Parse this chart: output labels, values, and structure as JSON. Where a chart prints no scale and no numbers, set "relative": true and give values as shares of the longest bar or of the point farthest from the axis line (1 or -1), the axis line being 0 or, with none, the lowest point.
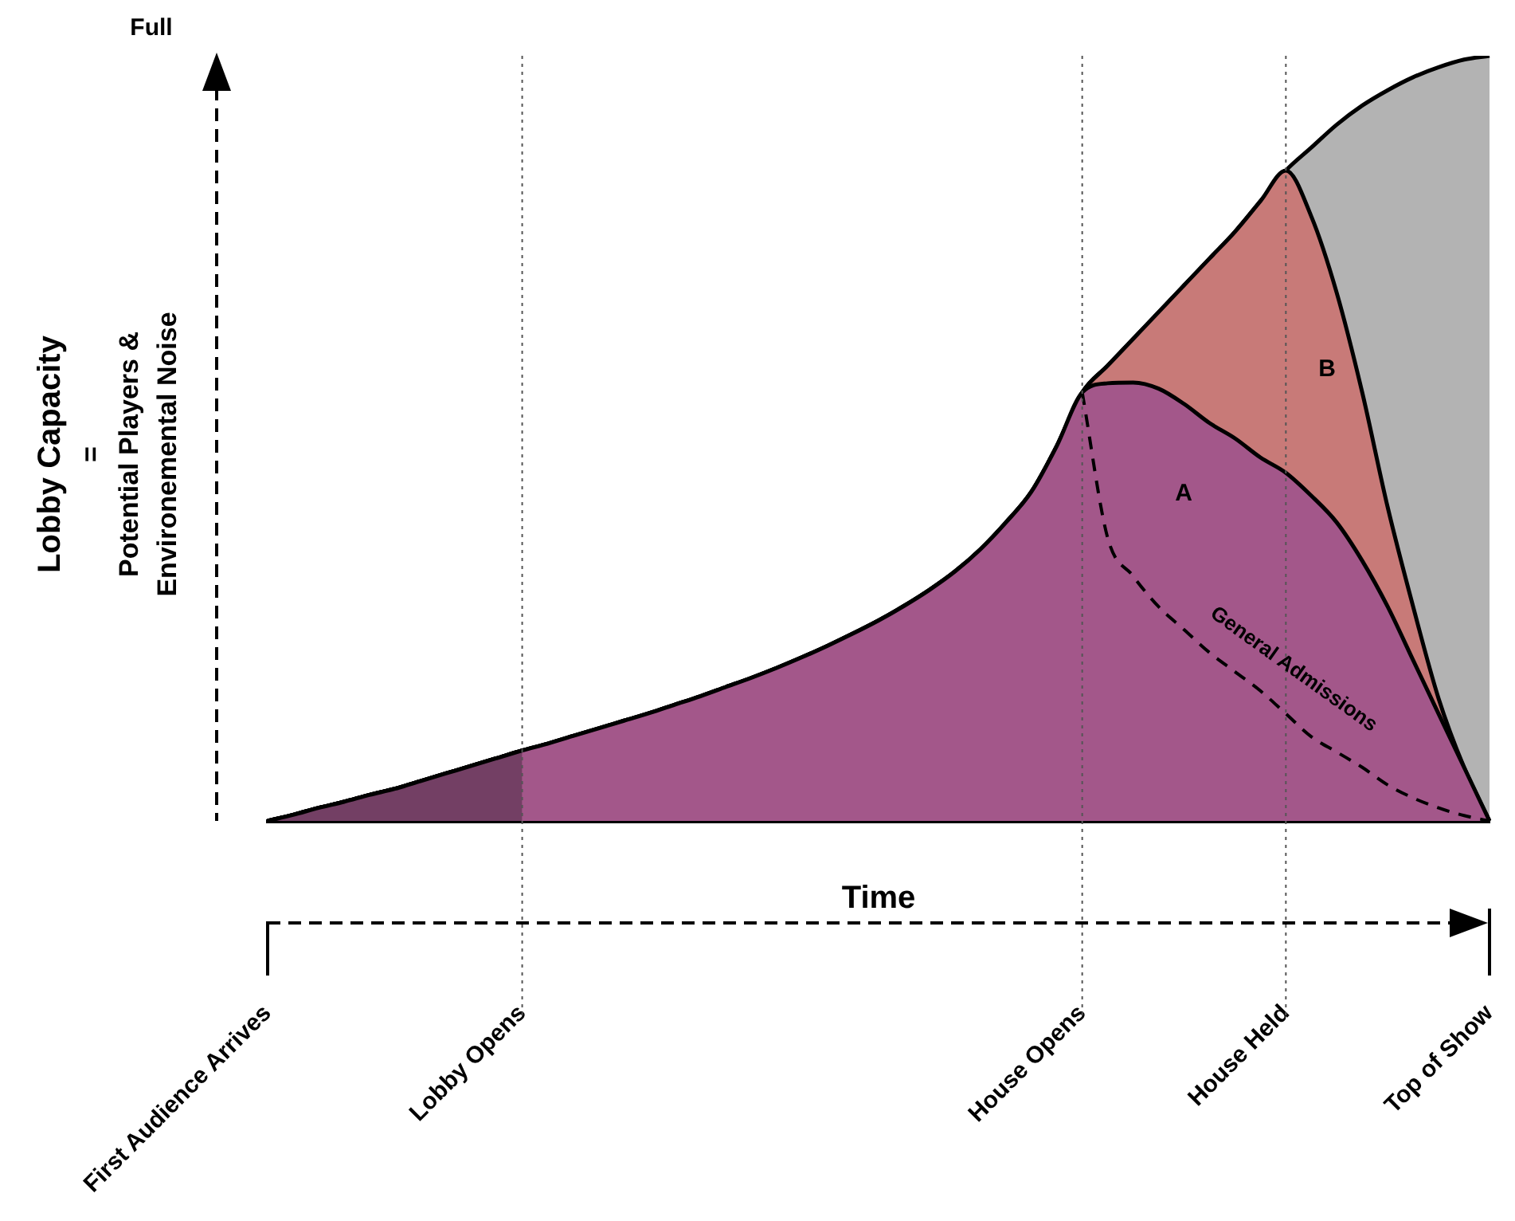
{
  "chart_data": {
    "type": "area",
    "relative": true,
    "xlabel": "Time",
    "ylabel": "Lobby Capacity\n=\nPotential Players &\nEnvironemental Noise",
    "categories": [
      "First Audience Arrives",
      null,
      null,
      null,
      null,
      null,
      null,
      null,
      null,
      null,
      "Lobby Opens",
      null,
      null,
      null,
      null,
      null,
      null,
      null,
      null,
      null,
      null,
      null,
      null,
      null,
      null,
      null,
      null,
      null,
      null,
      null,
      null,
      null,
      "House Opens",
      null,
      null,
      null,
      null,
      null,
      null,
      null,
      "House Held",
      null,
      null,
      null,
      null,
      null,
      null,
      null,
      "Top of Show"
    ],
    "series": [
      {
        "color": "#b3b3b3",
        "values": [
          0,
          0.008,
          0.017,
          0.025,
          0.034,
          0.042,
          0.052,
          0.062,
          0.072,
          0.082,
          0.092,
          0.101,
          0.111,
          0.121,
          0.131,
          0.141,
          0.152,
          0.163,
          0.175,
          0.187,
          0.2,
          0.214,
          0.229,
          0.245,
          0.262,
          0.281,
          0.302,
          0.326,
          0.355,
          0.39,
          0.43,
          0.49,
          0.56,
          0.595,
          0.63,
          0.665,
          0.7,
          0.735,
          0.77,
          0.81,
          0.85,
          0.88,
          0.91,
          0.935,
          0.955,
          0.972,
          0.985,
          0.995,
          1
        ]
      },
      {
        "color": "#c87a78",
        "values": [
          0,
          0.008,
          0.017,
          0.025,
          0.034,
          0.042,
          0.052,
          0.062,
          0.072,
          0.082,
          0.092,
          0.101,
          0.111,
          0.121,
          0.131,
          0.141,
          0.152,
          0.163,
          0.175,
          0.187,
          0.2,
          0.214,
          0.229,
          0.245,
          0.262,
          0.281,
          0.302,
          0.326,
          0.355,
          0.39,
          0.43,
          0.49,
          0.56,
          0.595,
          0.63,
          0.665,
          0.7,
          0.735,
          0.77,
          0.81,
          0.85,
          0.79,
          0.69,
          0.56,
          0.41,
          0.28,
          0.16,
          0.07,
          0
        ]
      },
      {
        "color": "#a3578a",
        "values": [
          0,
          0.008,
          0.017,
          0.025,
          0.034,
          0.042,
          0.052,
          0.062,
          0.072,
          0.082,
          0.092,
          0.101,
          0.111,
          0.121,
          0.131,
          0.141,
          0.152,
          0.163,
          0.175,
          0.187,
          0.2,
          0.214,
          0.229,
          0.245,
          0.262,
          0.281,
          0.302,
          0.326,
          0.355,
          0.39,
          0.43,
          0.49,
          0.56,
          0.572,
          0.573,
          0.565,
          0.545,
          0.52,
          0.5,
          0.475,
          0.455,
          0.425,
          0.39,
          0.34,
          0.28,
          0.21,
          0.14,
          0.07,
          0
        ]
      },
      {
        "color": "#733f64",
        "values": [
          0,
          0.008,
          0.017,
          0.025,
          0.034,
          0.042,
          0.052,
          0.062,
          0.072,
          0.082,
          0.092,
          null,
          null,
          null,
          null,
          null,
          null,
          null,
          null,
          null,
          null,
          null,
          null,
          null,
          null,
          null,
          null,
          null,
          null,
          null,
          null,
          null,
          null,
          null,
          null,
          null,
          null,
          null,
          null,
          null,
          null,
          null,
          null,
          null,
          null,
          null,
          null,
          null,
          null
        ]
      },
      {
        "type": "line",
        "color": "#000000",
        "line_style": "dashed",
        "values": [
          null,
          null,
          null,
          null,
          null,
          null,
          null,
          null,
          null,
          null,
          null,
          null,
          null,
          null,
          null,
          null,
          null,
          null,
          null,
          null,
          null,
          null,
          null,
          null,
          null,
          null,
          null,
          null,
          null,
          null,
          null,
          null,
          0.56,
          0.37,
          0.32,
          0.28,
          0.25,
          0.22,
          0.195,
          0.17,
          0.14,
          0.11,
          0.09,
          0.07,
          0.047,
          0.03,
          0.017,
          0.007,
          0
        ]
      }
    ],
    "ref_lines": [
      {
        "axis": "x",
        "value": "Lobby Opens",
        "line_style": "dotted"
      },
      {
        "axis": "x",
        "value": "House Opens",
        "line_style": "dotted"
      },
      {
        "axis": "x",
        "value": "House Held",
        "line_style": "dotted"
      }
    ],
    "annotations": [
      "Full",
      "A",
      "B",
      "General Admissions"
    ],
    "grid": false,
    "legend": false,
    "marker": "none"
  }
}
